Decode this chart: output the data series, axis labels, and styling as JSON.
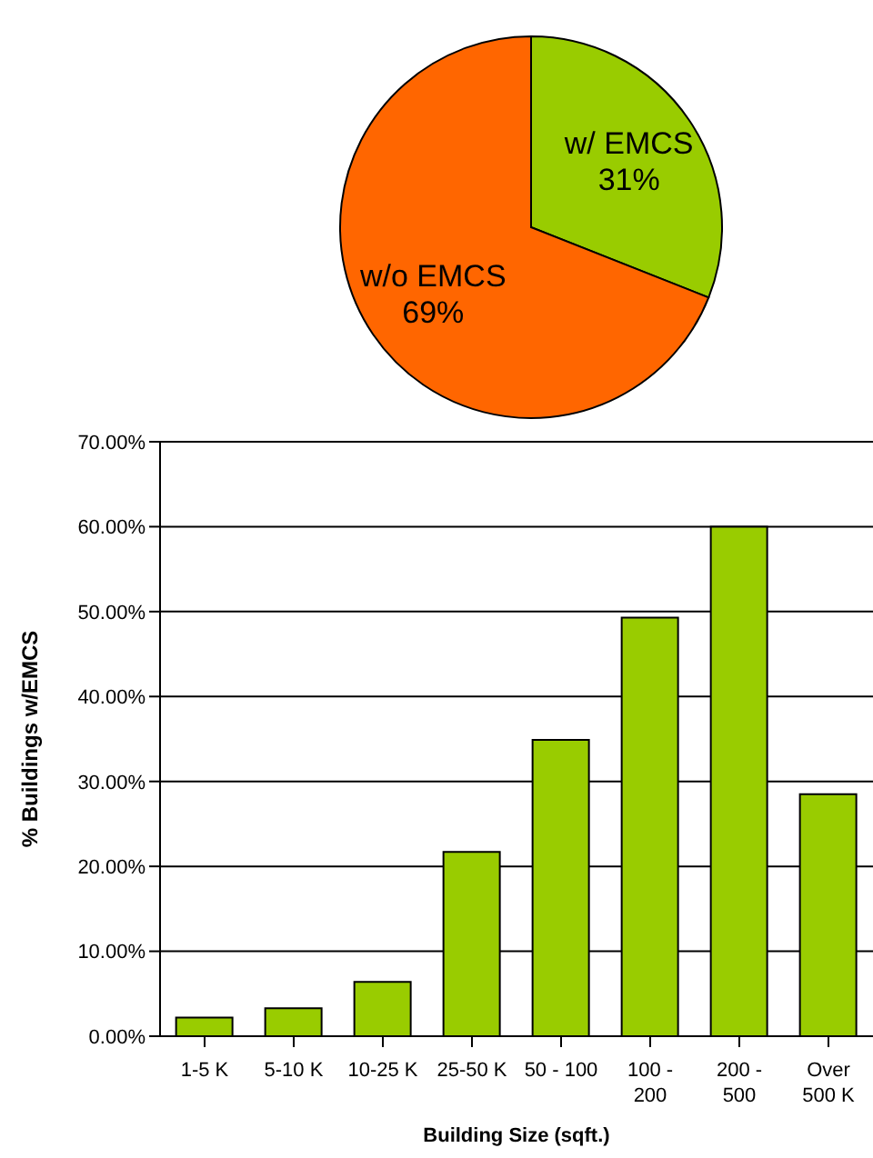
{
  "chart_data": [
    {
      "type": "pie",
      "categories": [
        "w/ EMCS",
        "w/o EMCS"
      ],
      "values": [
        31,
        69
      ],
      "colors": [
        "#99cc00",
        "#ff6600"
      ],
      "value_labels": [
        "31%",
        "69%"
      ],
      "legend": false
    },
    {
      "type": "bar",
      "ylabel": "% Buildings w/EMCS",
      "xlabel": "Building Size (sqft.)",
      "categories": [
        "1-5 K",
        "5-10 K",
        "10-25 K",
        "25-50 K",
        "50 - 100",
        "100 - 200",
        "200 - 500",
        "Over 500 K"
      ],
      "values": [
        2.2,
        3.3,
        6.4,
        21.7,
        34.9,
        49.3,
        60.0,
        28.5
      ],
      "color": "#99cc00",
      "ylim": [
        0,
        70
      ],
      "yticks": [
        {
          "value": 0,
          "label": "0.00%"
        },
        {
          "value": 10,
          "label": "10.00%"
        },
        {
          "value": 20,
          "label": "20.00%"
        },
        {
          "value": 30,
          "label": "30.00%"
        },
        {
          "value": 40,
          "label": "40.00%"
        },
        {
          "value": 50,
          "label": "50.00%"
        },
        {
          "value": 60,
          "label": "60.00%"
        },
        {
          "value": 70,
          "label": "70.00%"
        }
      ],
      "grid": "y",
      "legend": false
    }
  ]
}
